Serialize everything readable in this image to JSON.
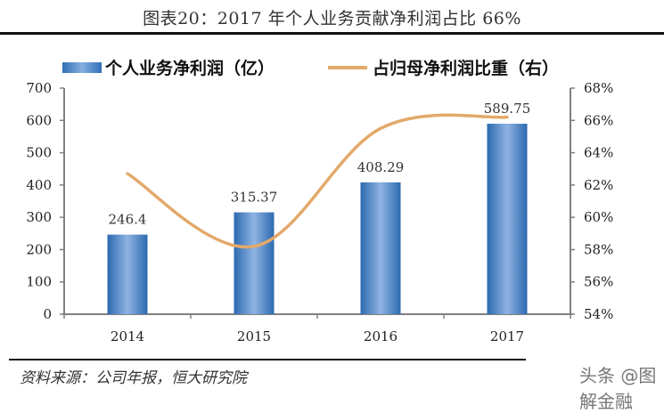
{
  "title": "图表20：2017 年个人业务贡献净利润占比 66%",
  "legend": {
    "bar_label": "个人业务净利润（亿）",
    "line_label": "占归母净利润比重（右）"
  },
  "source": "资料来源：公司年报，恒大研究院",
  "watermark": "头条 @图解金融",
  "colors": {
    "bar": "#2f6fb5",
    "bar_highlight": "#86aee0",
    "line": "#e3a96a",
    "axis": "#808080"
  },
  "chart_data": {
    "type": "bar+line",
    "title": "图表20：2017 年个人业务贡献净利润占比 66%",
    "categories": [
      "2014",
      "2015",
      "2016",
      "2017"
    ],
    "series": [
      {
        "name": "个人业务净利润（亿）",
        "type": "bar",
        "axis": "left",
        "values": [
          246.4,
          315.37,
          408.29,
          589.75
        ],
        "labels": [
          "246.4",
          "315.37",
          "408.29",
          "589.75"
        ]
      },
      {
        "name": "占归母净利润比重（右）",
        "type": "line",
        "axis": "right",
        "smooth": true,
        "values": [
          62.7,
          58.2,
          65.5,
          66.2
        ]
      }
    ],
    "y_left": {
      "min": 0,
      "max": 700,
      "ticks": [
        "0",
        "100",
        "200",
        "300",
        "400",
        "500",
        "600",
        "700"
      ]
    },
    "y_right": {
      "min": 54,
      "max": 68,
      "ticks": [
        "54%",
        "56%",
        "58%",
        "60%",
        "62%",
        "64%",
        "66%",
        "68%"
      ]
    },
    "xlabel": "",
    "ylabel": "",
    "grid": false,
    "legend_position": "top"
  }
}
